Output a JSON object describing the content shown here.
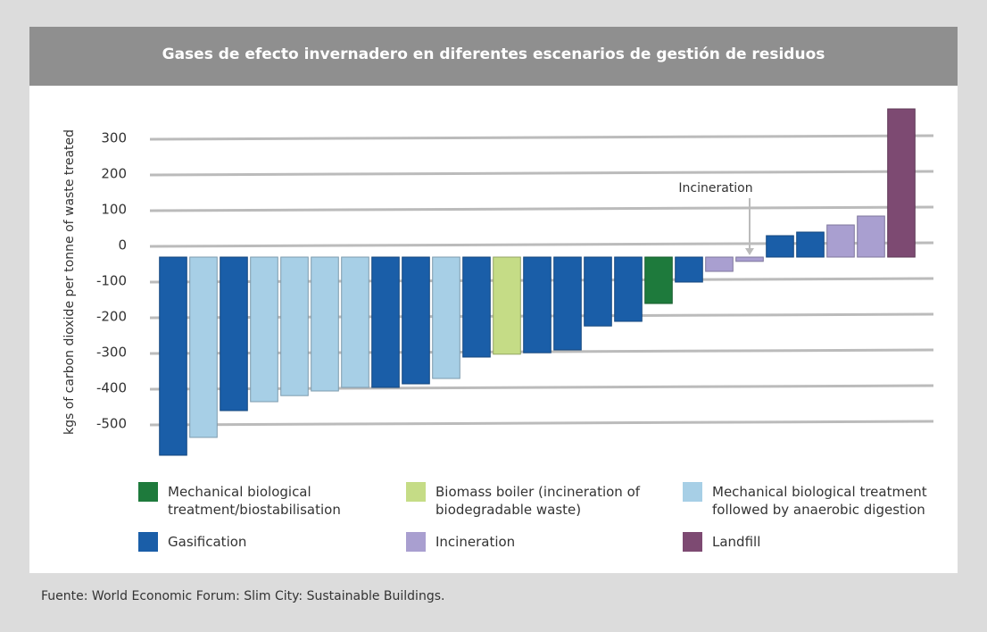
{
  "chart_data": {
    "type": "bar",
    "title": "Gases de efecto invernadero en diferentes escenarios de gestión de residuos",
    "y_label": "kgs of carbon dioxide per tonne of waste treated",
    "source": "Fuente: World Economic Forum: Slim City: Sustainable Buildings.",
    "annotation": {
      "text": "Incineration",
      "index": 19
    },
    "categories": [
      null,
      null,
      null,
      null,
      null,
      null,
      null,
      null,
      null,
      null,
      null,
      null,
      null,
      null,
      null,
      null,
      null,
      null,
      null,
      null,
      null,
      null,
      null,
      null,
      null
    ],
    "ylim": [
      -600,
      450
    ],
    "yticks": [
      300,
      200,
      100,
      0,
      -100,
      -200,
      -300,
      -400,
      -500
    ],
    "grid": true,
    "series": [
      {
        "name": "Mechanical biological treatment/biostabilisation",
        "color": "#1e7a3c",
        "values": [
          null,
          null,
          null,
          null,
          null,
          null,
          null,
          null,
          null,
          null,
          null,
          null,
          null,
          null,
          null,
          null,
          -130,
          null,
          null,
          null,
          null,
          null,
          null,
          null,
          null
        ]
      },
      {
        "name": "Biomass boiler (incineration of biodegradable waste)",
        "color": "#c5dc86",
        "values": [
          null,
          null,
          null,
          null,
          null,
          null,
          null,
          null,
          null,
          null,
          null,
          -272,
          null,
          null,
          null,
          null,
          null,
          null,
          null,
          null,
          null,
          null,
          null,
          null,
          null
        ]
      },
      {
        "name": "Mechanical biological treatment followed by anaerobic digestion",
        "color": "#a7cfe6",
        "values": [
          null,
          -505,
          null,
          -405,
          -388,
          -375,
          -365,
          null,
          null,
          -340,
          null,
          null,
          null,
          null,
          null,
          null,
          null,
          null,
          null,
          null,
          null,
          null,
          null,
          null,
          null
        ]
      },
      {
        "name": "Gasification",
        "color": "#1a5ea8",
        "values": [
          -555,
          null,
          -430,
          null,
          null,
          null,
          null,
          -365,
          -355,
          null,
          -280,
          null,
          -268,
          -260,
          -193,
          -180,
          null,
          -70,
          null,
          null,
          60,
          70,
          null,
          null,
          null
        ]
      },
      {
        "name": "Incineration",
        "color": "#a99fd0",
        "values": [
          null,
          null,
          null,
          null,
          null,
          null,
          null,
          null,
          null,
          null,
          null,
          null,
          null,
          null,
          null,
          null,
          null,
          null,
          -40,
          -12,
          null,
          null,
          90,
          115,
          null
        ]
      },
      {
        "name": "Landfill",
        "color": "#7d4a72",
        "values": [
          null,
          null,
          null,
          null,
          null,
          null,
          null,
          null,
          null,
          null,
          null,
          null,
          null,
          null,
          null,
          null,
          null,
          null,
          null,
          null,
          null,
          null,
          null,
          null,
          415
        ]
      }
    ]
  }
}
